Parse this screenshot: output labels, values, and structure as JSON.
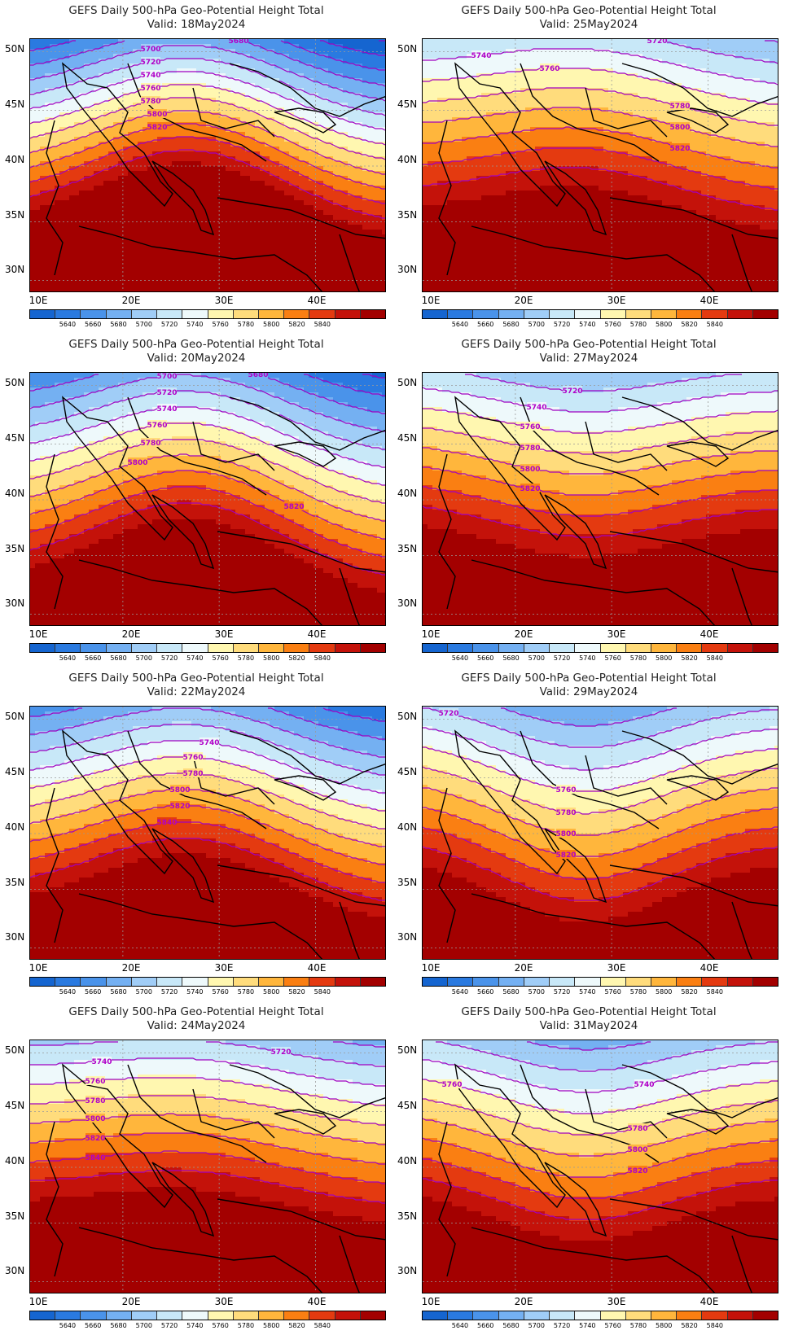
{
  "panel_title": "GEFS Daily 500-hPa Geo-Potential Height Total",
  "valid_prefix": "Valid:",
  "lat_labels": [
    "50N",
    "45N",
    "40N",
    "35N",
    "30N"
  ],
  "lon_labels": [
    "10E",
    "20E",
    "30E",
    "40E"
  ],
  "colorbar": {
    "colors": [
      "#1565d0",
      "#2a7ae0",
      "#4a93ea",
      "#74b0f2",
      "#a0cdf7",
      "#c8e8f8",
      "#eef9fb",
      "#fff7b0",
      "#ffdc7c",
      "#ffb63c",
      "#fa7f12",
      "#e43a10",
      "#c4120a",
      "#a30000"
    ],
    "labels": [
      "5640",
      "5660",
      "5680",
      "5700",
      "5720",
      "5740",
      "5760",
      "5780",
      "5800",
      "5820",
      "5840"
    ]
  },
  "contour_color": "#a000c0",
  "panels": [
    {
      "valid": "18May2024",
      "base": 5632,
      "amp": 115,
      "slope": 34,
      "contour_labels": [
        {
          "text": "5680",
          "x": 0.5
        },
        {
          "text": "5700",
          "x": 0.34
        },
        {
          "text": "5720",
          "x": 0.34
        },
        {
          "text": "5740",
          "x": 0.34
        },
        {
          "text": "5760",
          "x": 0.34
        },
        {
          "text": "5780",
          "x": 0.34
        },
        {
          "text": "5800",
          "x": 0.36
        },
        {
          "text": "5820",
          "x": 0.36
        }
      ]
    },
    {
      "valid": "25May2024",
      "base": 5716,
      "amp": 40,
      "slope": 24,
      "contour_labels": [
        {
          "text": "5720",
          "x": 0.4
        },
        {
          "text": "5740",
          "x": 0.16
        },
        {
          "text": "5760",
          "x": 0.36
        },
        {
          "text": "5780",
          "x": 0.72
        },
        {
          "text": "5800",
          "x": 0.72
        },
        {
          "text": "5820",
          "x": 0.72
        }
      ]
    },
    {
      "valid": "20May2024",
      "base": 5650,
      "amp": 95,
      "slope": 28,
      "contour_labels": [
        {
          "text": "5680",
          "x": 0.44
        },
        {
          "text": "5700",
          "x": 0.38
        },
        {
          "text": "5720",
          "x": 0.38
        },
        {
          "text": "5740",
          "x": 0.38
        },
        {
          "text": "5760",
          "x": 0.36
        },
        {
          "text": "5780",
          "x": 0.34
        },
        {
          "text": "5800",
          "x": 0.3
        },
        {
          "text": "5820",
          "x": 0.74
        }
      ]
    },
    {
      "valid": "27May2024",
      "base": 5730,
      "amp": -40,
      "slope": 26,
      "contour_labels": [
        {
          "text": "5720",
          "x": 0.42
        },
        {
          "text": "5740",
          "x": 0.32
        },
        {
          "text": "5760",
          "x": 0.3
        },
        {
          "text": "5780",
          "x": 0.3
        },
        {
          "text": "5800",
          "x": 0.3
        },
        {
          "text": "5820",
          "x": 0.3
        }
      ]
    },
    {
      "valid": "22May2024",
      "base": 5660,
      "amp": 80,
      "slope": 28,
      "contour_labels": [
        {
          "text": "5740",
          "x": 0.5
        },
        {
          "text": "5760",
          "x": 0.46
        },
        {
          "text": "5780",
          "x": 0.46
        },
        {
          "text": "5800",
          "x": 0.42
        },
        {
          "text": "5820",
          "x": 0.42
        },
        {
          "text": "5840",
          "x": 0.38
        }
      ]
    },
    {
      "valid": "29May2024",
      "base": 5728,
      "amp": -70,
      "slope": 26,
      "contour_labels": [
        {
          "text": "5720",
          "x": 0.07
        },
        {
          "text": "5760",
          "x": 0.4
        },
        {
          "text": "5780",
          "x": 0.4
        },
        {
          "text": "5800",
          "x": 0.4
        },
        {
          "text": "5820",
          "x": 0.4
        }
      ]
    },
    {
      "valid": "24May2024",
      "base": 5712,
      "amp": 30,
      "slope": 26,
      "contour_labels": [
        {
          "text": "5740",
          "x": 0.2
        },
        {
          "text": "5760",
          "x": 0.18
        },
        {
          "text": "5780",
          "x": 0.18
        },
        {
          "text": "5800",
          "x": 0.18
        },
        {
          "text": "5820",
          "x": 0.18
        },
        {
          "text": "5840",
          "x": 0.18
        },
        {
          "text": "5720",
          "x": 0.7
        }
      ]
    },
    {
      "valid": "31May2024",
      "base": 5728,
      "amp": -55,
      "slope": 26,
      "contour_labels": [
        {
          "text": "5760",
          "x": 0.08
        },
        {
          "text": "5740",
          "x": 0.62
        },
        {
          "text": "5780",
          "x": 0.6
        },
        {
          "text": "5800",
          "x": 0.6
        },
        {
          "text": "5820",
          "x": 0.6
        }
      ]
    }
  ]
}
